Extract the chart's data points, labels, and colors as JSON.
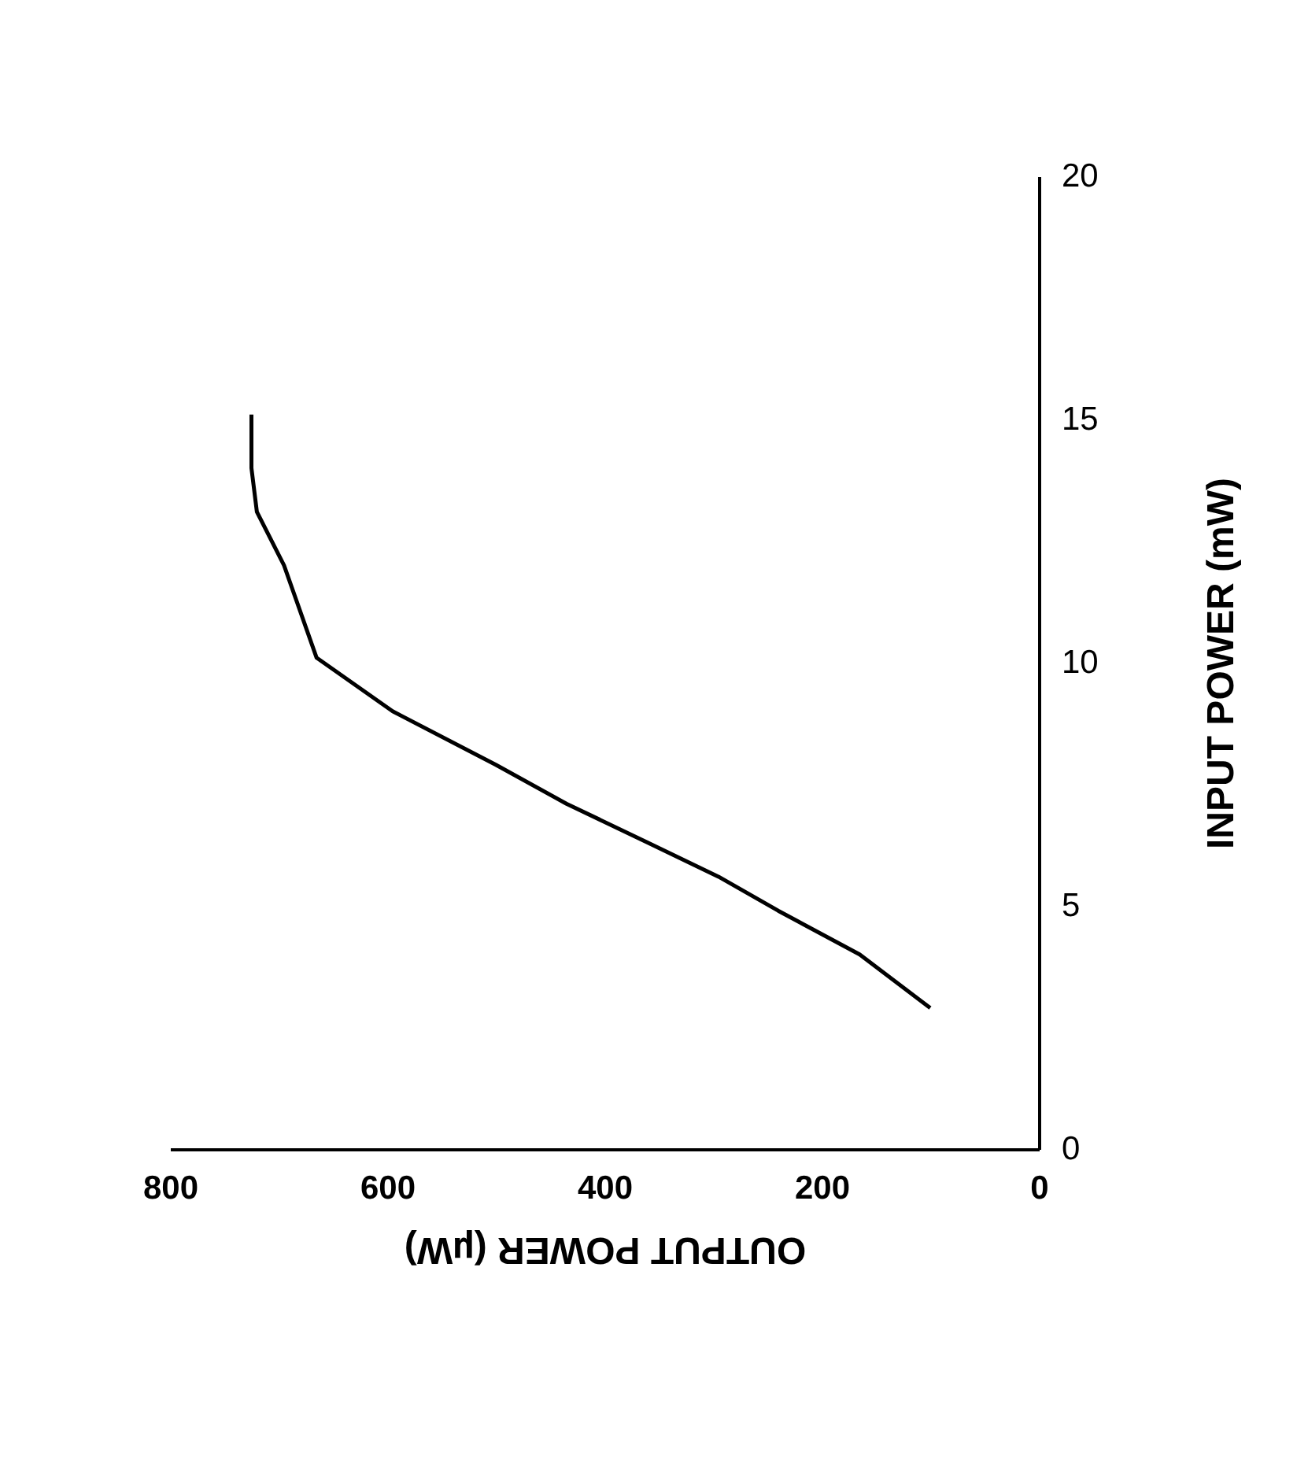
{
  "chart_data": {
    "type": "line",
    "xlabel": "OUTPUT POWER (µW)",
    "ylabel": "INPUT POWER (mW)",
    "x": [
      100,
      165,
      240,
      295,
      360,
      435,
      500,
      595,
      665,
      695,
      720,
      725,
      725
    ],
    "series": [
      {
        "color": "#000000",
        "values": [
          2.9,
          4.0,
          4.9,
          5.6,
          6.3,
          7.1,
          7.9,
          9.0,
          10.1,
          12.0,
          13.1,
          14.0,
          15.1
        ]
      }
    ],
    "xlim": [
      800,
      0
    ],
    "xticks": [
      800,
      600,
      400,
      200,
      0
    ],
    "ylim": [
      0,
      20
    ],
    "yticks": [
      0,
      5,
      10,
      15,
      20
    ],
    "grid": false,
    "marker": "none",
    "line_style": "solid"
  }
}
